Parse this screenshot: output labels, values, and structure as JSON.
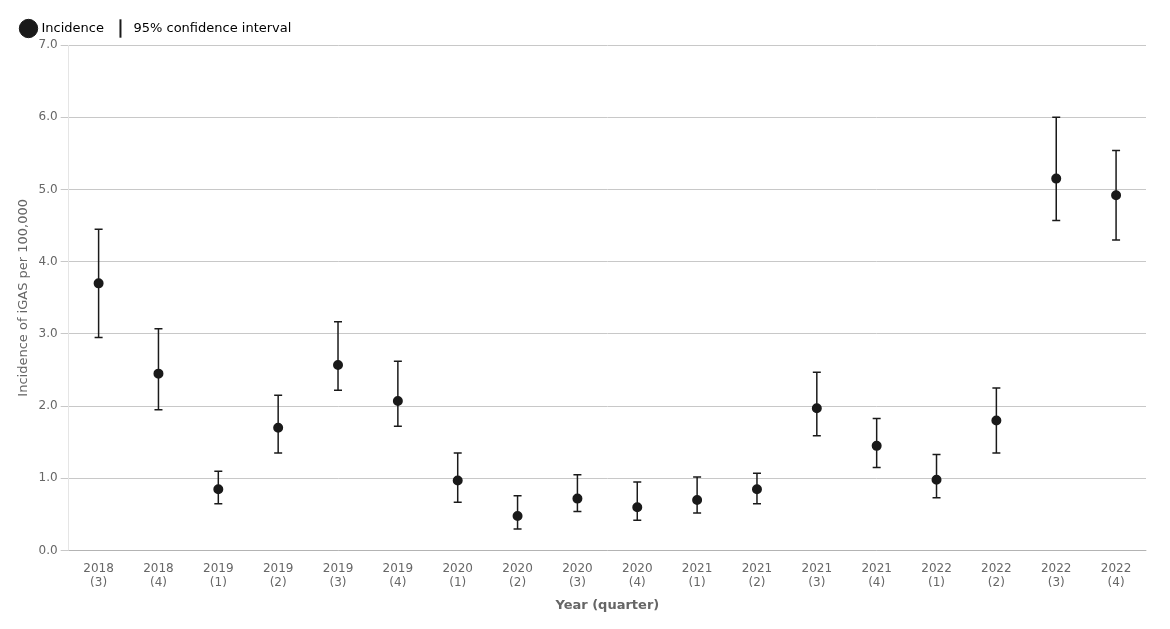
{
  "chart_data": {
    "type": "line",
    "x_label": "Year (quarter)",
    "y_label": "Incidence of iGAS per 100,000",
    "categories": [
      "2018\n(3)",
      "2018\n(4)",
      "2019\n(1)",
      "2019\n(2)",
      "2019\n(3)",
      "2019\n(4)",
      "2020\n(1)",
      "2020\n(2)",
      "2020\n(3)",
      "2020\n(4)",
      "2021\n(1)",
      "2021\n(2)",
      "2021\n(3)",
      "2021\n(4)",
      "2022\n(1)",
      "2022\n(2)",
      "2022\n(3)",
      "2022\n(4)"
    ],
    "series": [
      {
        "name": "Incidence",
        "color": "#1a1a1a",
        "marker": "circle",
        "line_style": "none",
        "values": [
          3.7,
          2.45,
          0.85,
          1.7,
          2.57,
          2.07,
          0.97,
          0.48,
          0.72,
          0.6,
          0.7,
          0.85,
          1.97,
          1.45,
          0.98,
          1.8,
          5.15,
          4.92
        ],
        "error_name": "95% confidence interval",
        "error_lower": [
          0.75,
          0.5,
          0.2,
          0.35,
          0.35,
          0.35,
          0.3,
          0.18,
          0.18,
          0.18,
          0.18,
          0.2,
          0.38,
          0.3,
          0.25,
          0.45,
          0.58,
          0.62
        ],
        "error_upper": [
          0.75,
          0.62,
          0.25,
          0.45,
          0.6,
          0.55,
          0.38,
          0.28,
          0.33,
          0.35,
          0.32,
          0.22,
          0.5,
          0.38,
          0.35,
          0.45,
          0.85,
          0.62
        ]
      }
    ],
    "ylim": [
      0.0,
      7.0
    ],
    "yticks": [
      {
        "value": 0,
        "label": "0.0"
      },
      {
        "value": 1,
        "label": "1.0"
      },
      {
        "value": 2,
        "label": "2.0"
      },
      {
        "value": 3,
        "label": "3.0"
      },
      {
        "value": 4,
        "label": "4.0"
      },
      {
        "value": 5,
        "label": "5.0"
      },
      {
        "value": 6,
        "label": "6.0"
      },
      {
        "value": 7,
        "label": "7.0"
      }
    ],
    "grid": true,
    "legend": "upper left"
  }
}
